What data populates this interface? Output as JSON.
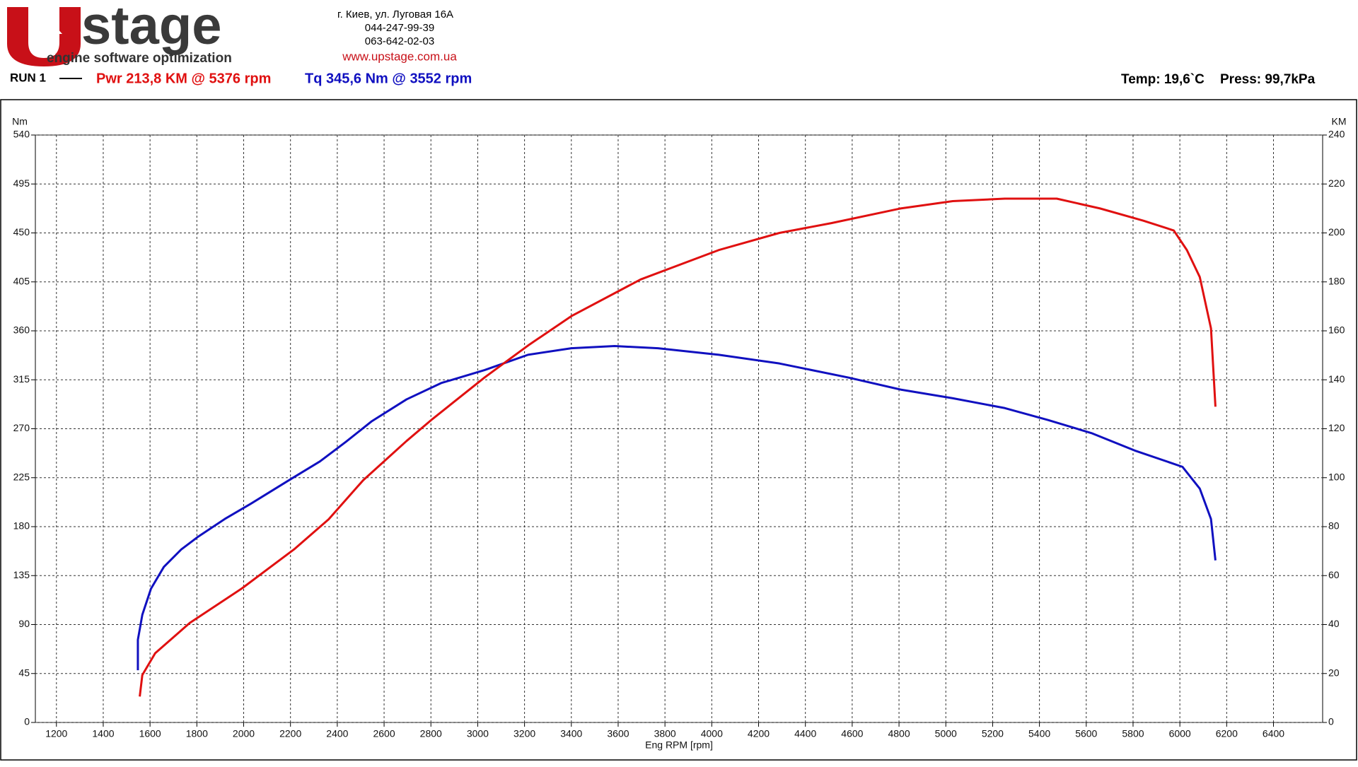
{
  "header": {
    "logo_mark": "U",
    "logo_word": "stage",
    "logo_tagline": "engine software optimization",
    "address": "г. Киев, ул. Луговая 16А",
    "phone_1": "044-247-99-39",
    "phone_2": "063-642-02-03",
    "website": "www.upstage.com.ua",
    "run": "RUN 1",
    "power_summary": "Pwr  213,8 KM @ 5376 rpm",
    "torque_summary": "Tq 345,6 Nm @ 3552 rpm",
    "temp": "Temp: 19,6`C",
    "press": "Press: 99,7kPa"
  },
  "chart_data": {
    "type": "line",
    "xlabel": "Eng RPM [rpm]",
    "ylabel": "Nm",
    "y2label": "KM",
    "grid": true,
    "xlim": [
      1110,
      6610
    ],
    "xticks": [
      1200,
      1400,
      1600,
      1800,
      2000,
      2200,
      2400,
      2600,
      2800,
      3000,
      3200,
      3400,
      3600,
      3800,
      4000,
      4200,
      4400,
      4600,
      4800,
      5000,
      5200,
      5400,
      5600,
      5800,
      6000,
      6200,
      6400
    ],
    "ylim": [
      0,
      540
    ],
    "yticks": [
      0,
      45,
      90,
      135,
      180,
      225,
      270,
      315,
      360,
      405,
      450,
      495,
      540
    ],
    "y2lim": [
      0,
      240
    ],
    "y2ticks": [
      0,
      20,
      40,
      60,
      80,
      100,
      120,
      140,
      160,
      180,
      200,
      220,
      240
    ],
    "series": [
      {
        "color": "#1010c0",
        "axis": "y",
        "x": [
          1548,
          1548,
          1567,
          1604,
          1659,
          1733,
          1807,
          1919,
          2030,
          2196,
          2326,
          2437,
          2548,
          2696,
          2844,
          3030,
          3215,
          3400,
          3585,
          3770,
          4030,
          4289,
          4585,
          4807,
          5030,
          5252,
          5437,
          5622,
          5807,
          6011,
          6085,
          6133,
          6152
        ],
        "values": [
          48,
          76,
          99,
          123,
          143,
          159,
          171,
          187,
          201,
          223,
          240,
          258,
          277,
          297,
          312,
          324,
          338,
          344,
          346,
          344,
          338,
          330,
          317,
          306,
          298,
          289,
          278,
          266,
          250,
          235,
          215,
          187,
          149
        ]
      },
      {
        "color": "#e01010",
        "axis": "y2",
        "x": [
          1556,
          1567,
          1622,
          1770,
          1993,
          2215,
          2363,
          2511,
          2696,
          2807,
          3030,
          3215,
          3400,
          3696,
          4030,
          4289,
          4511,
          4807,
          5030,
          5252,
          5474,
          5659,
          5844,
          5974,
          6030,
          6085,
          6133,
          6152
        ],
        "values": [
          10.6,
          19.4,
          28.3,
          40.7,
          54.8,
          70.7,
          83,
          99,
          115,
          124,
          141,
          154,
          166,
          181,
          193,
          200,
          204,
          210,
          213,
          214,
          214,
          210,
          205,
          201,
          193,
          182,
          161,
          129
        ]
      }
    ]
  }
}
